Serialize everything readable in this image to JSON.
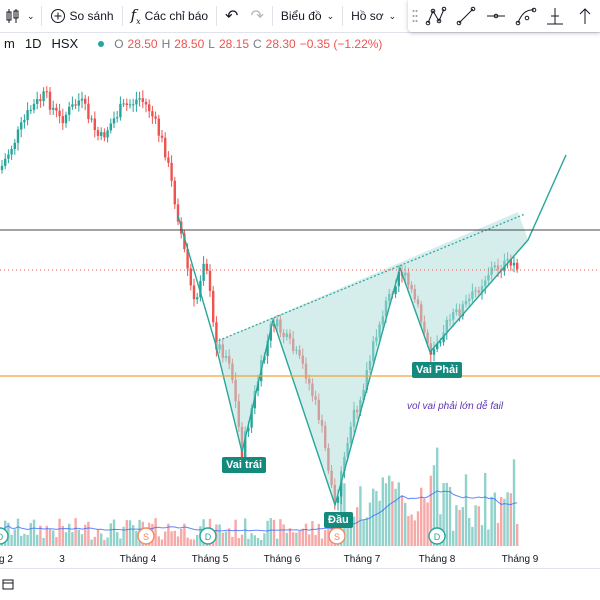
{
  "toolbar": {
    "compare_label": "So sánh",
    "indicators_label": "Các chỉ báo",
    "chart_label": "Biểu đồ",
    "profile_label": "Hồ sơ"
  },
  "legend": {
    "symbol": "m",
    "interval": "1D",
    "exchange": "HSX",
    "o_key": "O",
    "o_val": "28.50",
    "h_key": "H",
    "h_val": "28.50",
    "l_key": "L",
    "l_val": "28.15",
    "c_key": "C",
    "c_val": "28.30",
    "change": "−0.35 (−1.22%)"
  },
  "labels": {
    "left_shoulder": "Vai trái",
    "head": "Đầu",
    "right_shoulder": "Vai Phải",
    "note": "vol vai phải lớn dễ fail"
  },
  "xaxis": {
    "ticks": [
      "g 2",
      "3",
      "Tháng 4",
      "Tháng 5",
      "Tháng 6",
      "Tháng 7",
      "Tháng 8",
      "Tháng 9"
    ]
  },
  "colors": {
    "up": "#26a69a",
    "down": "#ef5350",
    "pattern_fill": "#b2dfdb",
    "pattern_line": "#26a69a",
    "orange_line": "#f0a537",
    "dark_line": "#434651",
    "ma_line": "#2962ff",
    "label_bg": "#138a7c"
  },
  "icons": {
    "drawing_tools": [
      "nodes-icon",
      "trend-line-icon",
      "horizontal-line-icon",
      "curve-icon",
      "fib-icon",
      "arrow-icon"
    ],
    "event_markers": [
      "dividend-icon",
      "split-icon",
      "dividend-icon",
      "split-icon",
      "dividend-icon"
    ]
  }
}
